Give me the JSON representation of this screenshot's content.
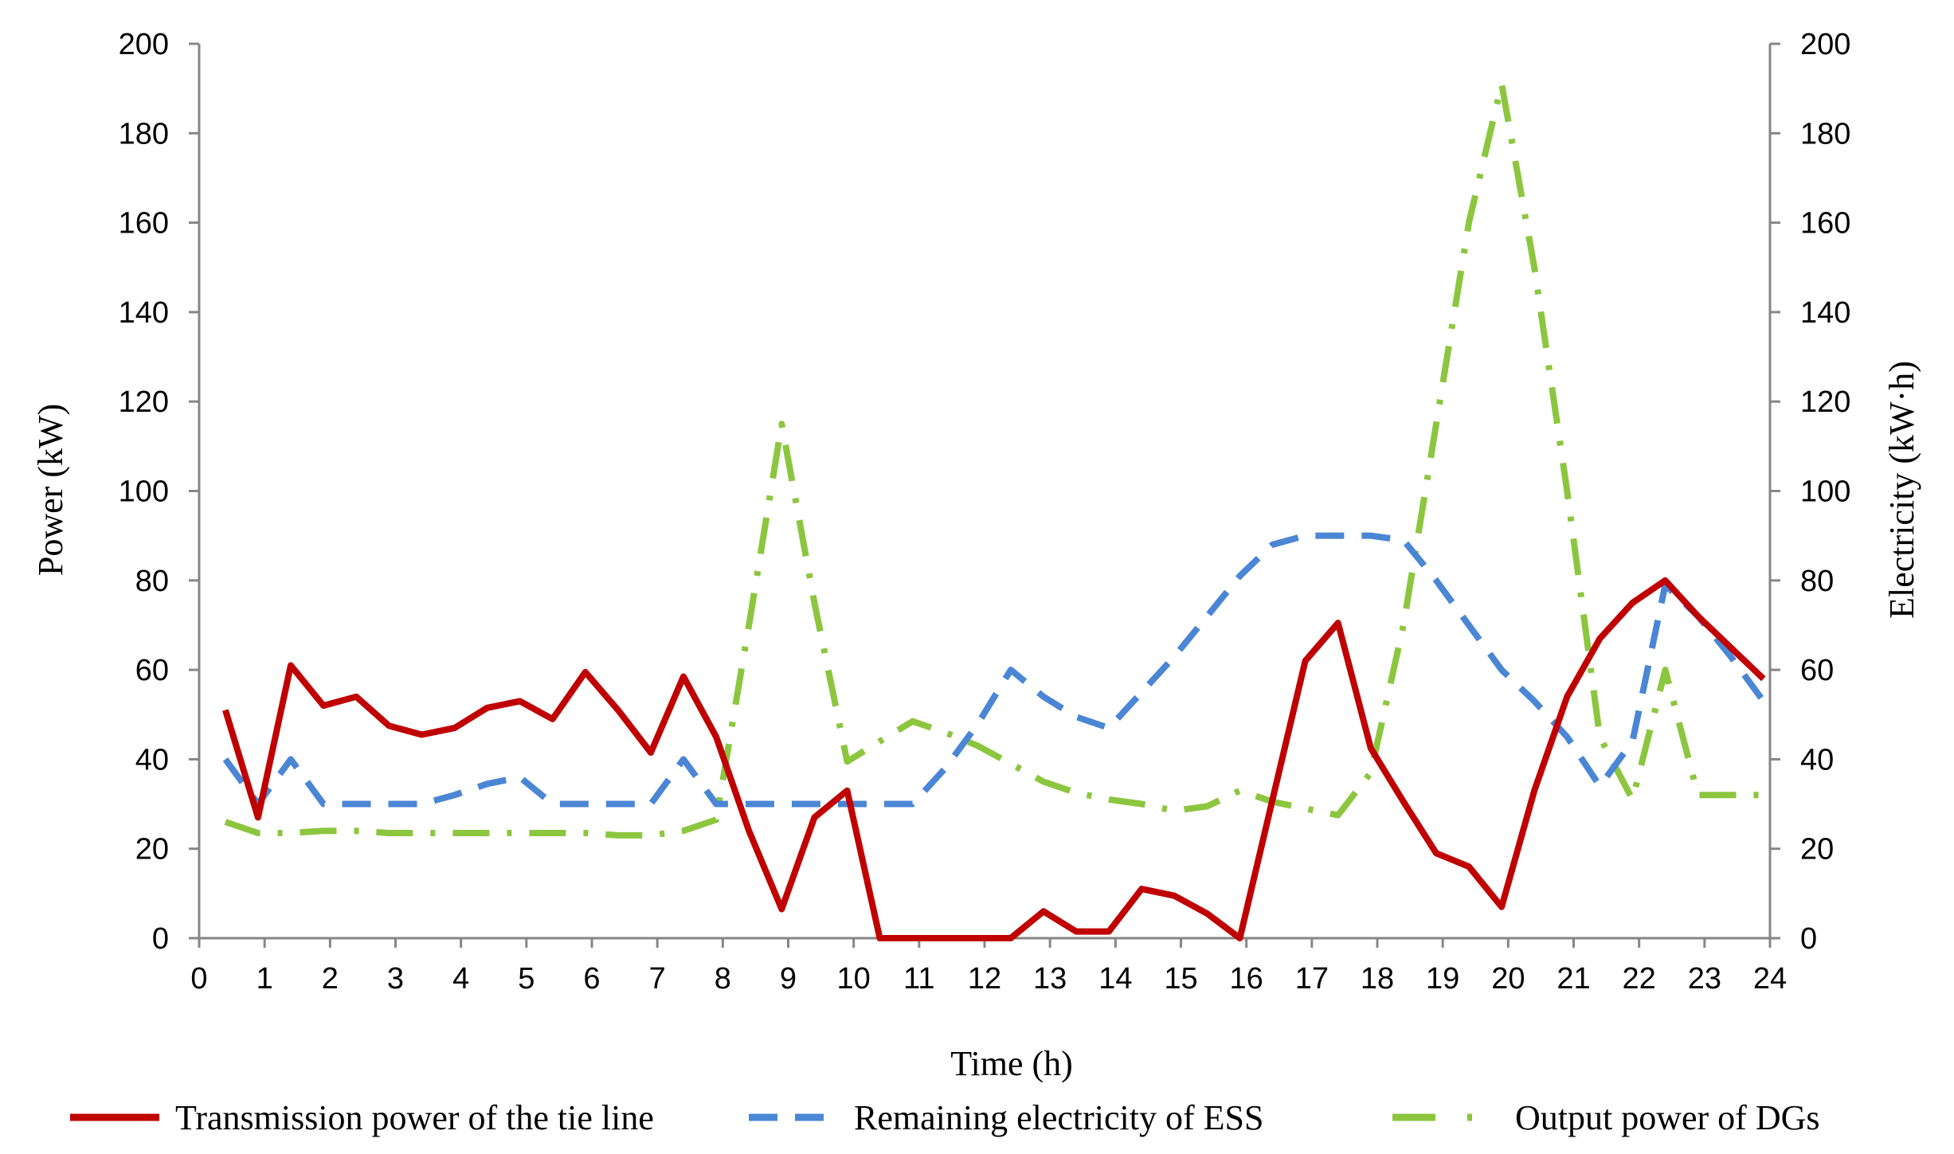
{
  "chart_data": {
    "type": "line",
    "xlabel": "Time (h)",
    "ylabel": "Power (kW)",
    "y2label": "Electricity (kW·h)",
    "xlim": [
      0,
      24
    ],
    "ylim": [
      0,
      200
    ],
    "y2lim": [
      0,
      200
    ],
    "xticks": [
      "0",
      "1",
      "2",
      "3",
      "4",
      "5",
      "6",
      "7",
      "8",
      "9",
      "10",
      "11",
      "12",
      "13",
      "14",
      "15",
      "16",
      "17",
      "18",
      "19",
      "20",
      "21",
      "22",
      "23",
      "24"
    ],
    "yticks": [
      "0",
      "20",
      "40",
      "60",
      "80",
      "100",
      "120",
      "140",
      "160",
      "180",
      "200"
    ],
    "y2ticks": [
      "0",
      "20",
      "40",
      "60",
      "80",
      "100",
      "120",
      "140",
      "160",
      "180",
      "200"
    ],
    "grid": false,
    "legend_position": "bottom",
    "series": [
      {
        "name": "Transmission power of the tie line",
        "axis": "left",
        "color": "#c00000",
        "dash": "solid",
        "points": [
          [
            0.4,
            51
          ],
          [
            0.9,
            27
          ],
          [
            1.4,
            61
          ],
          [
            1.9,
            52
          ],
          [
            2.4,
            54
          ],
          [
            2.9,
            47.5
          ],
          [
            3.4,
            45.5
          ],
          [
            3.9,
            47
          ],
          [
            4.4,
            51.5
          ],
          [
            4.9,
            53
          ],
          [
            5.4,
            49
          ],
          [
            5.9,
            59.5
          ],
          [
            6.4,
            51
          ],
          [
            6.9,
            41.5
          ],
          [
            7.4,
            58.5
          ],
          [
            7.9,
            45
          ],
          [
            8.4,
            24
          ],
          [
            8.9,
            6.5
          ],
          [
            9.4,
            27
          ],
          [
            9.9,
            33
          ],
          [
            10.4,
            0
          ],
          [
            10.9,
            0
          ],
          [
            11.4,
            0
          ],
          [
            11.9,
            0
          ],
          [
            12.4,
            0
          ],
          [
            12.9,
            6
          ],
          [
            13.4,
            1.5
          ],
          [
            13.9,
            1.5
          ],
          [
            14.4,
            11
          ],
          [
            14.9,
            9.5
          ],
          [
            15.4,
            5.5
          ],
          [
            15.9,
            0
          ],
          [
            16.4,
            31
          ],
          [
            16.9,
            62
          ],
          [
            17.4,
            70.5
          ],
          [
            17.9,
            42.5
          ],
          [
            18.4,
            30.5
          ],
          [
            18.9,
            19
          ],
          [
            19.4,
            16
          ],
          [
            19.9,
            7
          ],
          [
            20.4,
            33
          ],
          [
            20.9,
            54
          ],
          [
            21.4,
            67
          ],
          [
            21.9,
            75
          ],
          [
            22.4,
            80
          ],
          [
            22.9,
            72
          ],
          [
            23.4,
            65
          ],
          [
            23.9,
            58
          ]
        ]
      },
      {
        "name": "Remaining electricity of ESS",
        "axis": "right",
        "color": "#4a86d4",
        "dash": "dashed",
        "points": [
          [
            0.4,
            40
          ],
          [
            0.9,
            30
          ],
          [
            1.4,
            40
          ],
          [
            1.9,
            30
          ],
          [
            2.4,
            30
          ],
          [
            2.9,
            30
          ],
          [
            3.4,
            30
          ],
          [
            3.9,
            32
          ],
          [
            4.4,
            34.5
          ],
          [
            4.9,
            36
          ],
          [
            5.4,
            30
          ],
          [
            5.9,
            30
          ],
          [
            6.4,
            30
          ],
          [
            6.9,
            30
          ],
          [
            7.4,
            40
          ],
          [
            7.9,
            30
          ],
          [
            8.4,
            30
          ],
          [
            8.9,
            30
          ],
          [
            9.4,
            30
          ],
          [
            9.9,
            30
          ],
          [
            10.4,
            30
          ],
          [
            10.9,
            30
          ],
          [
            11.4,
            38
          ],
          [
            11.9,
            48
          ],
          [
            12.4,
            60
          ],
          [
            12.9,
            54
          ],
          [
            13.4,
            49.5
          ],
          [
            13.9,
            47
          ],
          [
            14.4,
            55
          ],
          [
            14.9,
            63
          ],
          [
            15.4,
            72
          ],
          [
            15.9,
            81
          ],
          [
            16.4,
            88
          ],
          [
            16.9,
            90
          ],
          [
            17.4,
            90
          ],
          [
            17.9,
            90
          ],
          [
            18.4,
            89
          ],
          [
            18.9,
            80
          ],
          [
            19.4,
            70
          ],
          [
            19.9,
            60
          ],
          [
            20.4,
            53
          ],
          [
            20.9,
            45
          ],
          [
            21.4,
            34
          ],
          [
            21.9,
            44
          ],
          [
            22.4,
            79
          ],
          [
            22.9,
            72
          ],
          [
            23.4,
            63
          ],
          [
            23.9,
            53
          ]
        ]
      },
      {
        "name": "Output power of DGs",
        "axis": "left",
        "color": "#8cc63f",
        "dash": "dashdot",
        "points": [
          [
            0.4,
            26
          ],
          [
            0.9,
            23.5
          ],
          [
            1.4,
            23.5
          ],
          [
            1.9,
            24
          ],
          [
            2.4,
            24
          ],
          [
            2.9,
            23.5
          ],
          [
            3.4,
            23.5
          ],
          [
            3.9,
            23.5
          ],
          [
            4.4,
            23.5
          ],
          [
            4.9,
            23.5
          ],
          [
            5.4,
            23.5
          ],
          [
            5.9,
            23.5
          ],
          [
            6.4,
            23
          ],
          [
            6.9,
            23
          ],
          [
            7.4,
            24
          ],
          [
            7.9,
            26.5
          ],
          [
            8.4,
            70
          ],
          [
            8.9,
            115
          ],
          [
            9.4,
            75
          ],
          [
            9.9,
            39.5
          ],
          [
            10.4,
            44
          ],
          [
            10.9,
            48.5
          ],
          [
            11.4,
            46
          ],
          [
            11.9,
            43
          ],
          [
            12.4,
            39
          ],
          [
            12.9,
            35
          ],
          [
            13.4,
            32.5
          ],
          [
            13.9,
            31
          ],
          [
            14.4,
            30
          ],
          [
            14.9,
            28.5
          ],
          [
            15.4,
            29.5
          ],
          [
            15.9,
            33
          ],
          [
            16.4,
            30.5
          ],
          [
            16.9,
            29
          ],
          [
            17.4,
            27.5
          ],
          [
            17.9,
            37
          ],
          [
            18.4,
            70
          ],
          [
            18.9,
            115
          ],
          [
            19.4,
            160
          ],
          [
            19.9,
            191
          ],
          [
            20.4,
            150
          ],
          [
            20.9,
            100
          ],
          [
            21.4,
            45
          ],
          [
            21.9,
            31
          ],
          [
            22.4,
            60
          ],
          [
            22.9,
            32
          ],
          [
            23.4,
            32
          ],
          [
            23.9,
            32
          ]
        ]
      }
    ]
  }
}
